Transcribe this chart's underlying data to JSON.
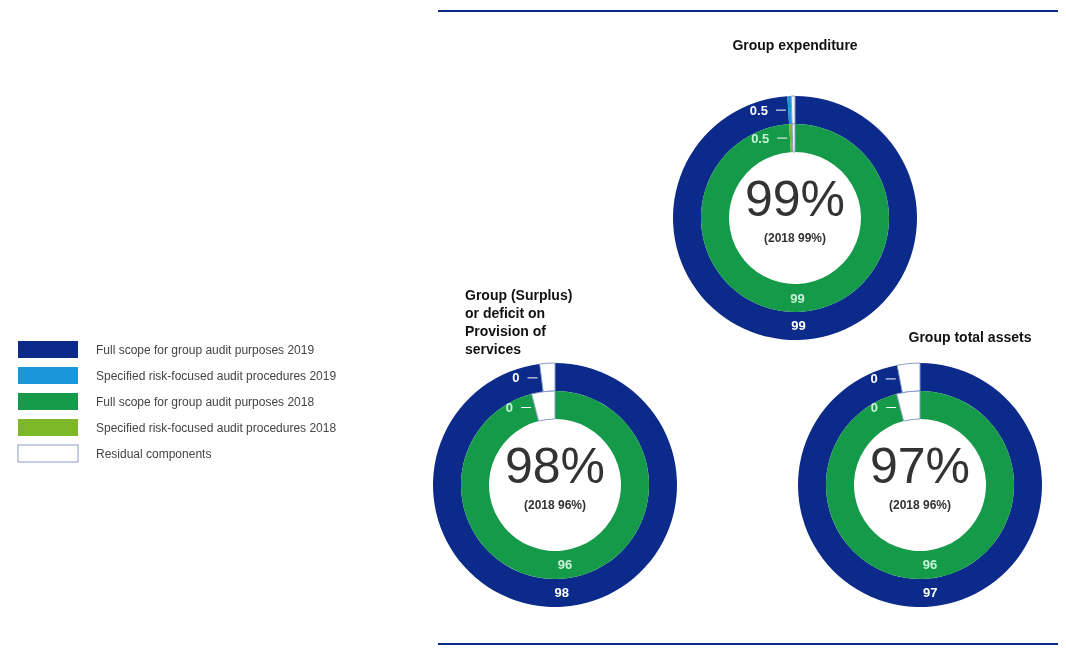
{
  "chart_data": [
    {
      "type": "donut",
      "title": "Group expenditure",
      "legend": "left",
      "categories": [
        "Full scope for group audit purposes 2019",
        "Specified risk-focused audit procedures 2019",
        null
      ],
      "colors": [
        "#0b2a8a",
        "#1b96db",
        "#f3f5fa"
      ],
      "values": [
        99,
        0.5,
        0.5
      ],
      "value_labels": [
        "99",
        "0.5",
        null
      ],
      "annotations": [
        "99%"
      ]
    },
    {
      "type": "donut",
      "legend": "left",
      "categories": [
        "Full scope for group audit purposes 2018",
        "Specified risk-focused audit procedures 2018",
        null
      ],
      "colors": [
        "#149a48",
        "#7cb82a",
        "#f3f5fa"
      ],
      "values": [
        99,
        0.5,
        0.5
      ],
      "value_labels": [
        "99",
        "0.5",
        null
      ],
      "annotations": [
        "(2018 99%)"
      ]
    },
    {
      "type": "donut",
      "title": "Group (Surplus)\nor deficit on\nProvision of\nservices",
      "categories": [
        null,
        null,
        null
      ],
      "colors": [
        "#0b2a8a",
        "#1b96db",
        "#ffffff"
      ],
      "values": [
        98,
        0,
        2
      ],
      "value_labels": [
        "98",
        "0",
        null
      ],
      "annotations": [
        "98%"
      ]
    },
    {
      "type": "donut",
      "legend": "left",
      "categories": [
        null,
        null,
        "Residual components"
      ],
      "colors": [
        "#149a48",
        "#7cb82a",
        "#ffffff"
      ],
      "values": [
        96,
        0,
        4
      ],
      "value_labels": [
        "96",
        "0",
        null
      ],
      "annotations": [
        "(2018 96%)"
      ]
    },
    {
      "type": "donut",
      "title": "Group total assets",
      "categories": [
        null,
        null,
        null
      ],
      "colors": [
        "#0b2a8a",
        "#1b96db",
        "#ffffff"
      ],
      "values": [
        97,
        0,
        3
      ],
      "value_labels": [
        "97",
        "0",
        null
      ],
      "annotations": [
        "97%"
      ]
    },
    {
      "type": "donut",
      "categories": [
        null,
        null,
        null
      ],
      "colors": [
        "#149a48",
        "#7cb82a",
        "#ffffff"
      ],
      "values": [
        96,
        0,
        4
      ],
      "value_labels": [
        "96",
        "0",
        null
      ],
      "annotations": [
        "(2018 96%)"
      ]
    }
  ]
}
